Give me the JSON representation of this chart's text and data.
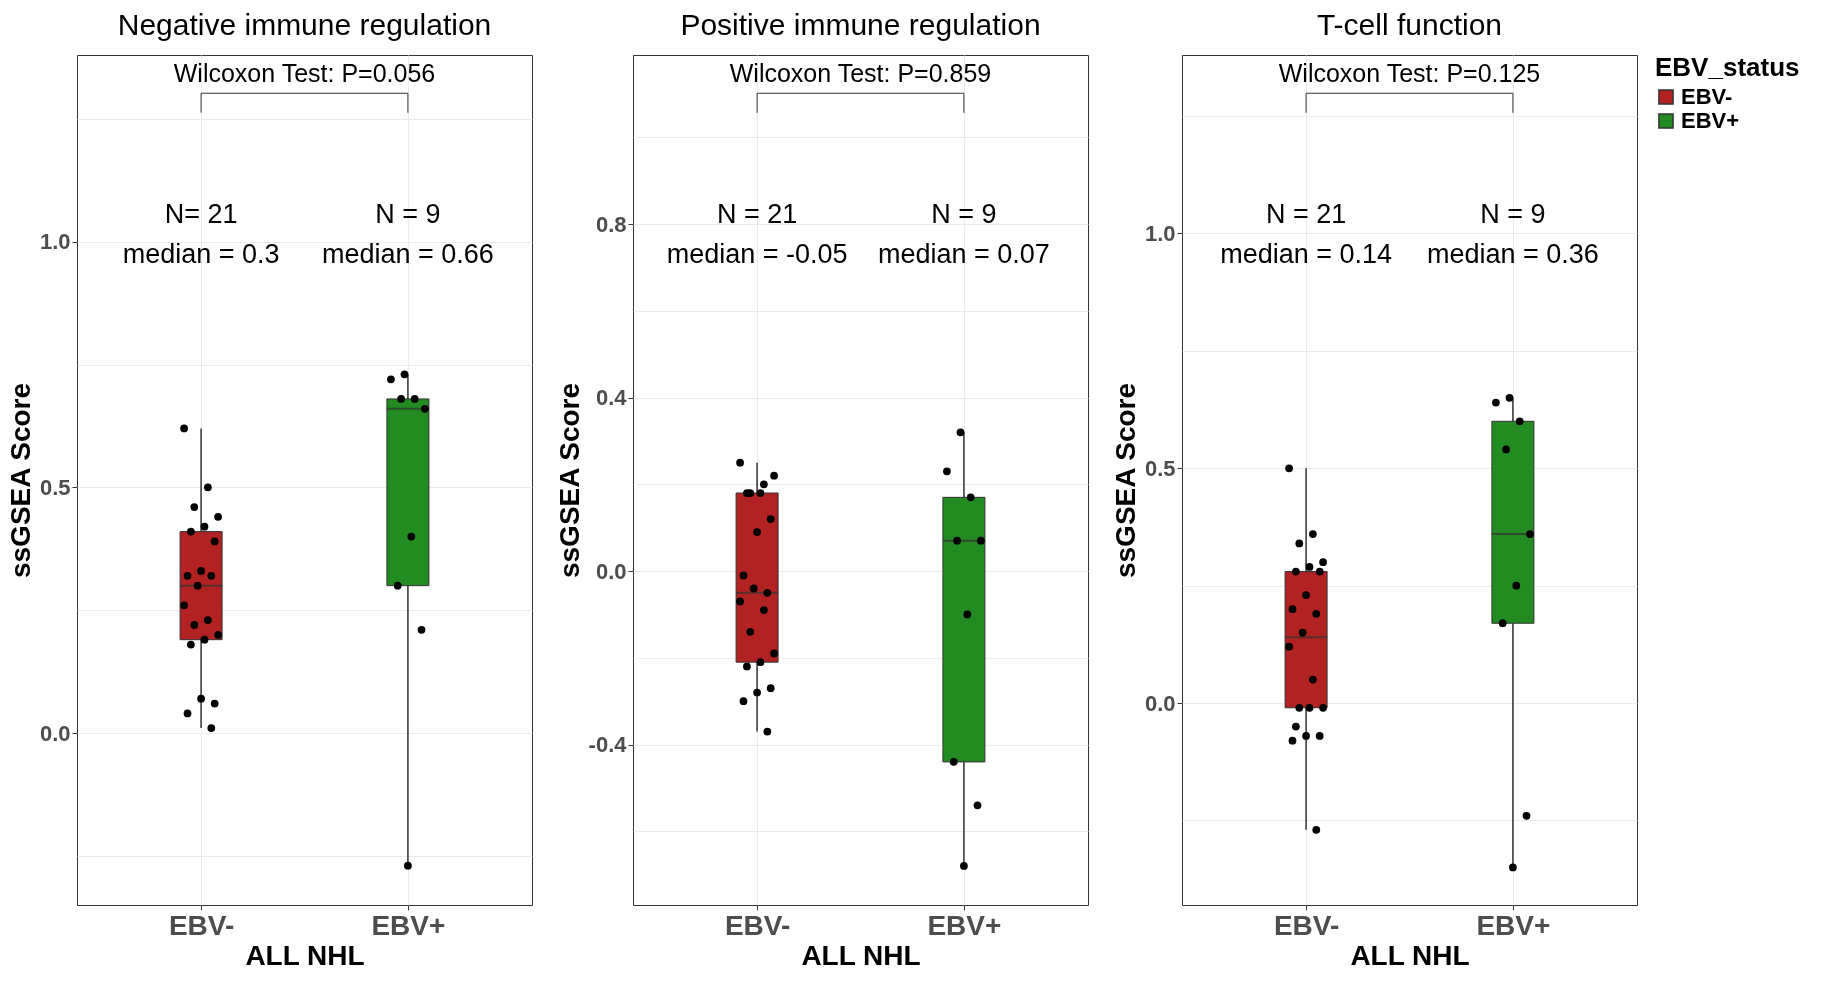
{
  "chart_data": [
    {
      "type": "box",
      "title": "Negative immune regulation",
      "xlabel": "ALL NHL",
      "ylabel": "ssGSEA Score",
      "categories": [
        "EBV-",
        "EBV+"
      ],
      "series": [
        {
          "type": "box",
          "color": "#b22222",
          "boxes": [
            {
              "low": 0.01,
              "q1": 0.19,
              "median": 0.3,
              "q3": 0.41,
              "high": 0.62
            },
            null
          ]
        },
        {
          "type": "box",
          "color": "#228b22",
          "boxes": [
            null,
            {
              "low": -0.27,
              "q1": 0.3,
              "median": 0.66,
              "q3": 0.68,
              "high": 0.73
            }
          ]
        },
        {
          "type": "scatter",
          "color": "#000000",
          "x": [
            "EBV-",
            "EBV-",
            "EBV-",
            "EBV-",
            "EBV-",
            "EBV-",
            "EBV-",
            "EBV-",
            "EBV-",
            "EBV-",
            "EBV-",
            "EBV-",
            "EBV-",
            "EBV-",
            "EBV-",
            "EBV-",
            "EBV-",
            "EBV-",
            "EBV-",
            "EBV-",
            "EBV-",
            "EBV+",
            "EBV+",
            "EBV+",
            "EBV+",
            "EBV+",
            "EBV+",
            "EBV+",
            "EBV+",
            "EBV+"
          ],
          "values": [
            0.62,
            0.5,
            0.46,
            0.44,
            0.42,
            0.41,
            0.39,
            0.33,
            0.32,
            0.32,
            0.3,
            0.26,
            0.23,
            0.22,
            0.2,
            0.19,
            0.18,
            0.06,
            0.07,
            0.04,
            0.01,
            0.73,
            0.72,
            0.68,
            0.68,
            0.66,
            0.4,
            0.3,
            0.21,
            -0.27
          ]
        }
      ],
      "ylim": [
        -0.35,
        1.38
      ],
      "yticks": [
        {
          "value": -0.25,
          "label": null
        },
        {
          "value": 0,
          "label": "0.0"
        },
        {
          "value": 0.25,
          "label": null
        },
        0.5,
        {
          "value": 0.75,
          "label": null
        },
        {
          "value": 1,
          "label": "1.0"
        },
        {
          "value": 1.25,
          "label": null
        }
      ],
      "grid": true,
      "annotations": [
        "Wilcoxon Test: P=0.056",
        "N= 21",
        "median = 0.3",
        "N = 9",
        "median = 0.66"
      ]
    },
    {
      "type": "box",
      "title": "Positive immune regulation",
      "xlabel": "ALL NHL",
      "ylabel": "ssGSEA Score",
      "categories": [
        "EBV-",
        "EBV+"
      ],
      "series": [
        {
          "type": "box",
          "color": "#b22222",
          "boxes": [
            {
              "low": -0.37,
              "q1": -0.21,
              "median": -0.05,
              "q3": 0.18,
              "high": 0.25
            },
            null
          ]
        },
        {
          "type": "box",
          "color": "#228b22",
          "boxes": [
            null,
            {
              "low": -0.68,
              "q1": -0.44,
              "median": 0.07,
              "q3": 0.17,
              "high": 0.32
            }
          ]
        },
        {
          "type": "scatter",
          "color": "#000000",
          "x": [
            "EBV-",
            "EBV-",
            "EBV-",
            "EBV-",
            "EBV-",
            "EBV-",
            "EBV-",
            "EBV-",
            "EBV-",
            "EBV-",
            "EBV-",
            "EBV-",
            "EBV-",
            "EBV-",
            "EBV-",
            "EBV-",
            "EBV-",
            "EBV-",
            "EBV-",
            "EBV-",
            "EBV-",
            "EBV+",
            "EBV+",
            "EBV+",
            "EBV+",
            "EBV+",
            "EBV+",
            "EBV+",
            "EBV+",
            "EBV+"
          ],
          "values": [
            0.25,
            0.2,
            0.18,
            0.22,
            0.18,
            0.18,
            0.12,
            0.09,
            -0.01,
            -0.05,
            -0.04,
            -0.07,
            -0.09,
            -0.14,
            -0.19,
            -0.21,
            -0.22,
            -0.27,
            -0.28,
            -0.3,
            -0.37,
            0.32,
            0.23,
            0.17,
            0.07,
            0.07,
            -0.1,
            -0.44,
            -0.54,
            -0.68
          ]
        }
      ],
      "ylim": [
        -0.77,
        1.19
      ],
      "yticks": [
        {
          "value": -0.6,
          "label": null
        },
        -0.4,
        {
          "value": -0.2,
          "label": null
        },
        {
          "value": 0,
          "label": "0.0"
        },
        {
          "value": 0.2,
          "label": null
        },
        0.4,
        {
          "value": 0.6,
          "label": null
        },
        0.8,
        {
          "value": 1,
          "label": null
        }
      ],
      "grid": true,
      "annotations": [
        "Wilcoxon Test: P=0.859",
        "N = 21",
        "median = -0.05",
        "N = 9",
        "median = 0.07"
      ]
    },
    {
      "type": "box",
      "title": "T-cell function",
      "xlabel": "ALL NHL",
      "ylabel": "ssGSEA Score",
      "categories": [
        "EBV-",
        "EBV+"
      ],
      "legend_title": "EBV_status",
      "legend": "right",
      "series": [
        {
          "type": "box",
          "name": "EBV-",
          "color": "#b22222",
          "boxes": [
            {
              "low": -0.27,
              "q1": -0.01,
              "median": 0.14,
              "q3": 0.28,
              "high": 0.5
            },
            null
          ]
        },
        {
          "type": "box",
          "name": "EBV+",
          "color": "#228b22",
          "boxes": [
            null,
            {
              "low": -0.35,
              "q1": 0.17,
              "median": 0.36,
              "q3": 0.6,
              "high": 0.65
            }
          ]
        },
        {
          "type": "scatter",
          "color": "#000000",
          "x": [
            "EBV-",
            "EBV-",
            "EBV-",
            "EBV-",
            "EBV-",
            "EBV-",
            "EBV-",
            "EBV-",
            "EBV-",
            "EBV-",
            "EBV-",
            "EBV-",
            "EBV-",
            "EBV-",
            "EBV-",
            "EBV-",
            "EBV-",
            "EBV-",
            "EBV-",
            "EBV-",
            "EBV-",
            "EBV+",
            "EBV+",
            "EBV+",
            "EBV+",
            "EBV+",
            "EBV+",
            "EBV+",
            "EBV+",
            "EBV+"
          ],
          "values": [
            0.5,
            0.36,
            0.34,
            0.3,
            0.29,
            0.28,
            0.28,
            0.23,
            0.2,
            0.19,
            0.15,
            0.12,
            0.05,
            -0.01,
            -0.01,
            -0.01,
            -0.05,
            -0.07,
            -0.07,
            -0.08,
            -0.27,
            0.65,
            0.64,
            0.6,
            0.54,
            0.36,
            0.25,
            0.17,
            -0.24,
            -0.35
          ]
        }
      ],
      "ylim": [
        -0.43,
        1.38
      ],
      "yticks": [
        {
          "value": -0.25,
          "label": null
        },
        {
          "value": 0,
          "label": "0.0"
        },
        {
          "value": 0.25,
          "label": null
        },
        0.5,
        {
          "value": 0.75,
          "label": null
        },
        {
          "value": 1,
          "label": "1.0"
        },
        {
          "value": 1.25,
          "label": null
        }
      ],
      "grid": true,
      "annotations": [
        "Wilcoxon Test: P=0.125",
        "N = 21",
        "median = 0.14",
        "N = 9",
        "median = 0.36"
      ]
    }
  ]
}
